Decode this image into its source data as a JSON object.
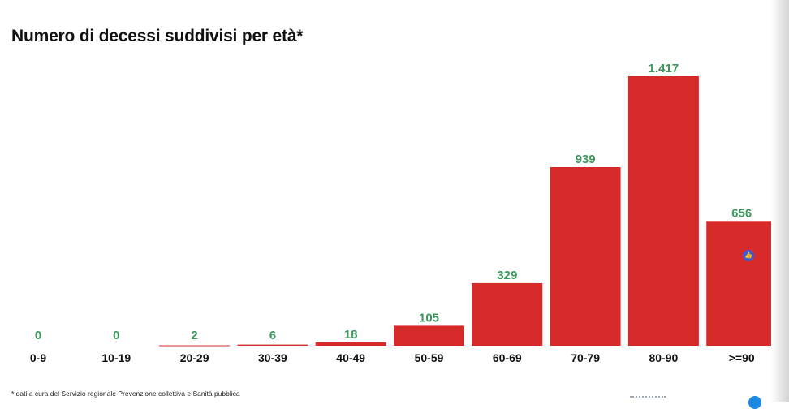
{
  "title": "Numero di decessi suddivisi per età*",
  "footnote": "* dati a cura del Servizio regionale Prevenzione collettiva e Sanità pubblica",
  "colors": {
    "bar": "#d62a2a",
    "value_label": "#3a9a5c",
    "category_label": "#111111"
  },
  "icons": {
    "like": "thumbs-up-icon",
    "corner": "circle-icon"
  },
  "chart_data": {
    "type": "bar",
    "title": "Numero di decessi suddivisi per età*",
    "categories": [
      "0-9",
      "10-19",
      "20-29",
      "30-39",
      "40-49",
      "50-59",
      "60-69",
      "70-79",
      "80-90",
      ">=90"
    ],
    "values": [
      0,
      0,
      2,
      6,
      18,
      105,
      329,
      939,
      1417,
      656
    ],
    "value_labels": [
      "0",
      "0",
      "2",
      "6",
      "18",
      "105",
      "329",
      "939",
      "1.417",
      "656"
    ],
    "xlabel": "",
    "ylabel": "",
    "ylim": [
      0,
      1417
    ],
    "grid": false,
    "legend": "none"
  }
}
